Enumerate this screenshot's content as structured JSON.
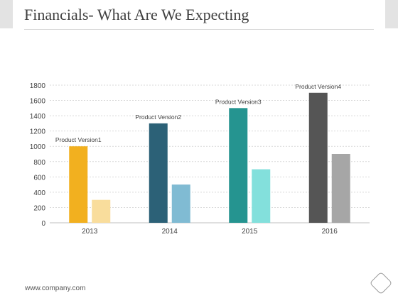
{
  "slide": {
    "title": "Financials- What Are We Expecting",
    "footer": "www.company.com"
  },
  "colors": {
    "pv1": "#f2b01f",
    "pv1_light": "#f9dd9c",
    "pv2": "#2c6177",
    "pv2_light": "#80bbd3",
    "pv3": "#259490",
    "pv3_light": "#83e0dc",
    "pv4": "#555555",
    "pv4_light": "#a6a6a6",
    "grid": "#d9d9d9",
    "axis_text": "#404040"
  },
  "chart_data": {
    "type": "bar",
    "categories": [
      "2013",
      "2014",
      "2015",
      "2016"
    ],
    "series": [
      {
        "values": [
          1000,
          1300,
          1500,
          1700
        ]
      },
      {
        "values": [
          300,
          500,
          700,
          900
        ]
      }
    ],
    "annotations": [
      "Product Version1",
      "Product Version2",
      "Product Version3",
      "Product Version4"
    ],
    "ylim": [
      0,
      1800
    ],
    "yticks": [
      0,
      200,
      400,
      600,
      800,
      1000,
      1200,
      1400,
      1600,
      1800
    ],
    "grid": true,
    "legend": "none",
    "title": "",
    "xlabel": "",
    "ylabel": ""
  }
}
